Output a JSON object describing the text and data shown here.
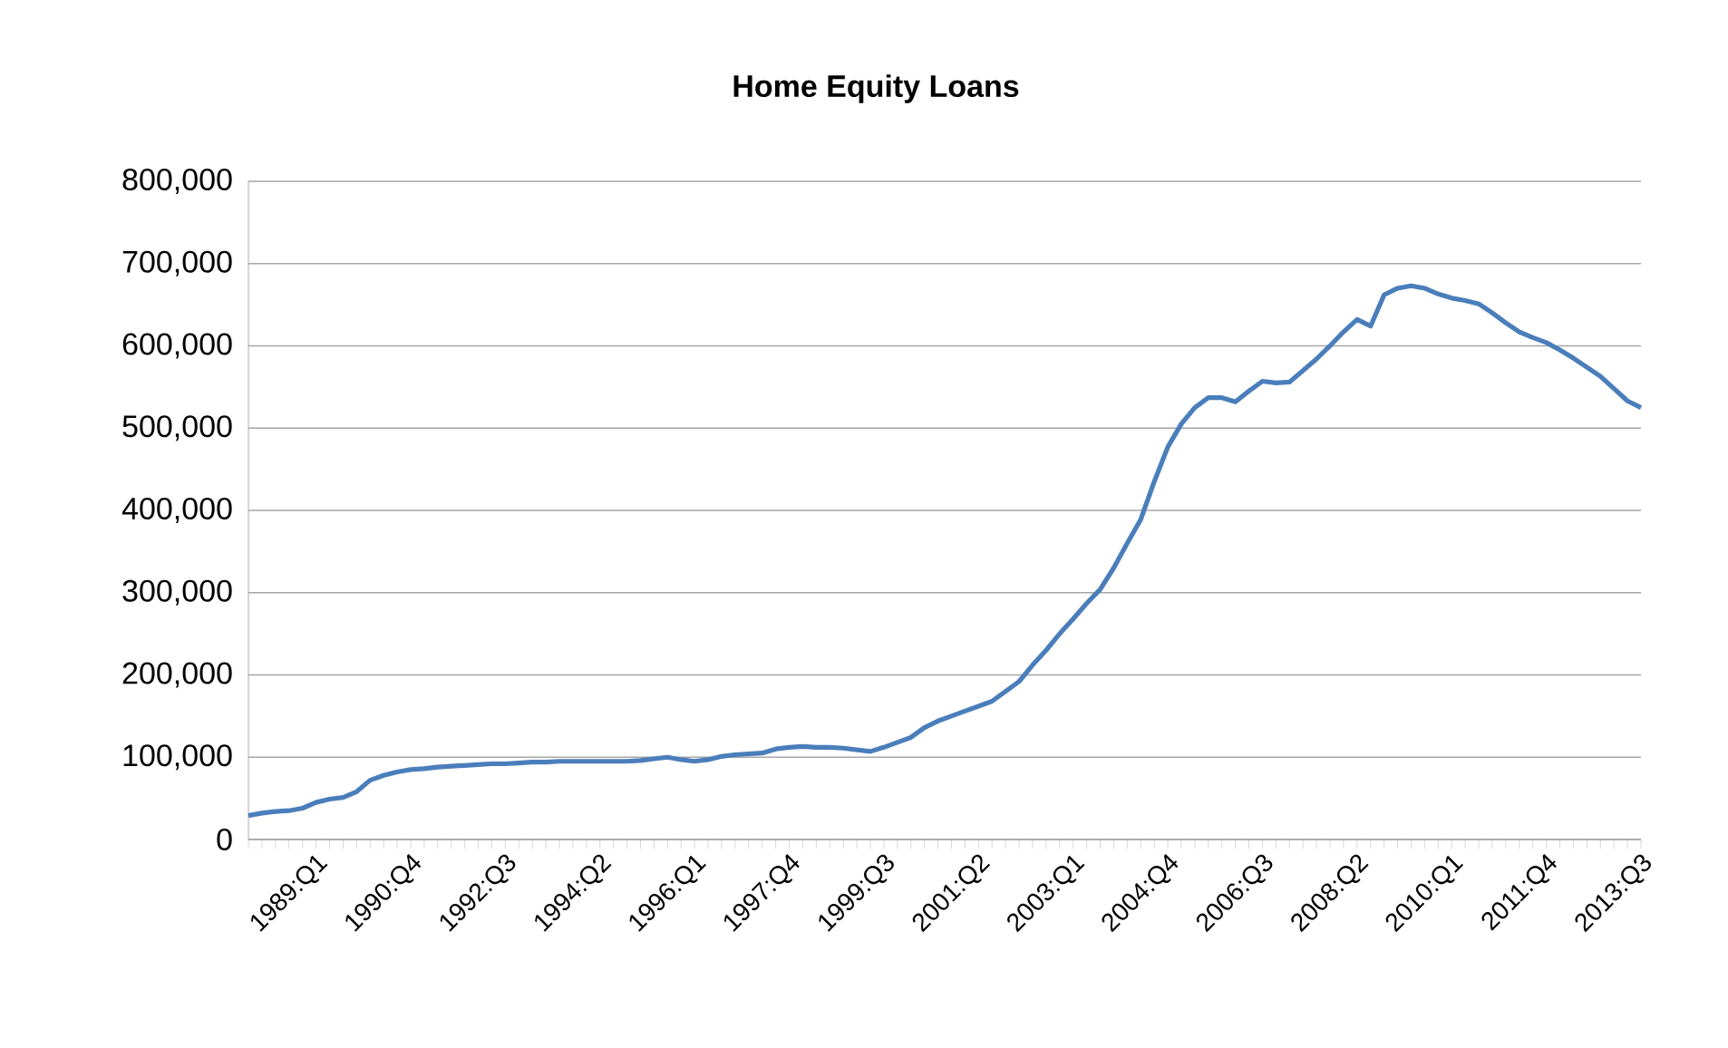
{
  "chart_data": {
    "type": "line",
    "title": "Home Equity Loans",
    "categories": [
      null,
      null,
      null,
      null,
      null,
      "1989:Q1",
      null,
      null,
      null,
      null,
      null,
      null,
      "1990:Q4",
      null,
      null,
      null,
      null,
      null,
      null,
      "1992:Q3",
      null,
      null,
      null,
      null,
      null,
      null,
      "1994:Q2",
      null,
      null,
      null,
      null,
      null,
      null,
      "1996:Q1",
      null,
      null,
      null,
      null,
      null,
      null,
      "1997:Q4",
      null,
      null,
      null,
      null,
      null,
      null,
      "1999:Q3",
      null,
      null,
      null,
      null,
      null,
      null,
      "2001:Q2",
      null,
      null,
      null,
      null,
      null,
      null,
      "2003:Q1",
      null,
      null,
      null,
      null,
      null,
      null,
      "2004:Q4",
      null,
      null,
      null,
      null,
      null,
      null,
      "2006:Q3",
      null,
      null,
      null,
      null,
      null,
      null,
      "2008:Q2",
      null,
      null,
      null,
      null,
      null,
      null,
      "2010:Q1",
      null,
      null,
      null,
      null,
      null,
      null,
      "2011:Q4",
      null,
      null,
      null,
      null,
      null,
      null,
      "2013:Q3"
    ],
    "series": [
      {
        "color": "#4a7ebb",
        "values": [
          29000,
          32000,
          34000,
          35000,
          38000,
          45000,
          49000,
          51000,
          58000,
          72000,
          78000,
          82000,
          85000,
          86000,
          88000,
          89000,
          90000,
          91000,
          92000,
          92000,
          93000,
          94000,
          94000,
          95000,
          95000,
          95000,
          95000,
          95000,
          95000,
          96000,
          98000,
          100000,
          97000,
          95000,
          97000,
          101000,
          103000,
          104000,
          105000,
          110000,
          112000,
          113000,
          112000,
          112000,
          111000,
          109000,
          107000,
          112000,
          118000,
          124000,
          136000,
          144000,
          150000,
          156000,
          162000,
          168000,
          180000,
          192000,
          212000,
          230000,
          250000,
          268000,
          287000,
          304000,
          330000,
          360000,
          389000,
          435000,
          477000,
          505000,
          525000,
          537000,
          537000,
          532000,
          545000,
          557000,
          555000,
          556000,
          570000,
          584000,
          600000,
          617000,
          632000,
          624000,
          662000,
          670000,
          673000,
          670000,
          663000,
          658000,
          655000,
          651000,
          640000,
          628000,
          617000,
          610000,
          604000,
          595000,
          585000,
          574000,
          563000,
          548000,
          533000,
          525000
        ]
      }
    ],
    "ylim": [
      0,
      800000
    ],
    "yticks": [
      {
        "value": 0,
        "label": "0"
      },
      {
        "value": 100000,
        "label": "100,000"
      },
      {
        "value": 200000,
        "label": "200,000"
      },
      {
        "value": 300000,
        "label": "300,000"
      },
      {
        "value": 400000,
        "label": "400,000"
      },
      {
        "value": 500000,
        "label": "500,000"
      },
      {
        "value": 600000,
        "label": "600,000"
      },
      {
        "value": 700000,
        "label": "700,000"
      },
      {
        "value": 800000,
        "label": "800,000"
      }
    ],
    "grid": "y",
    "marker": "none"
  }
}
